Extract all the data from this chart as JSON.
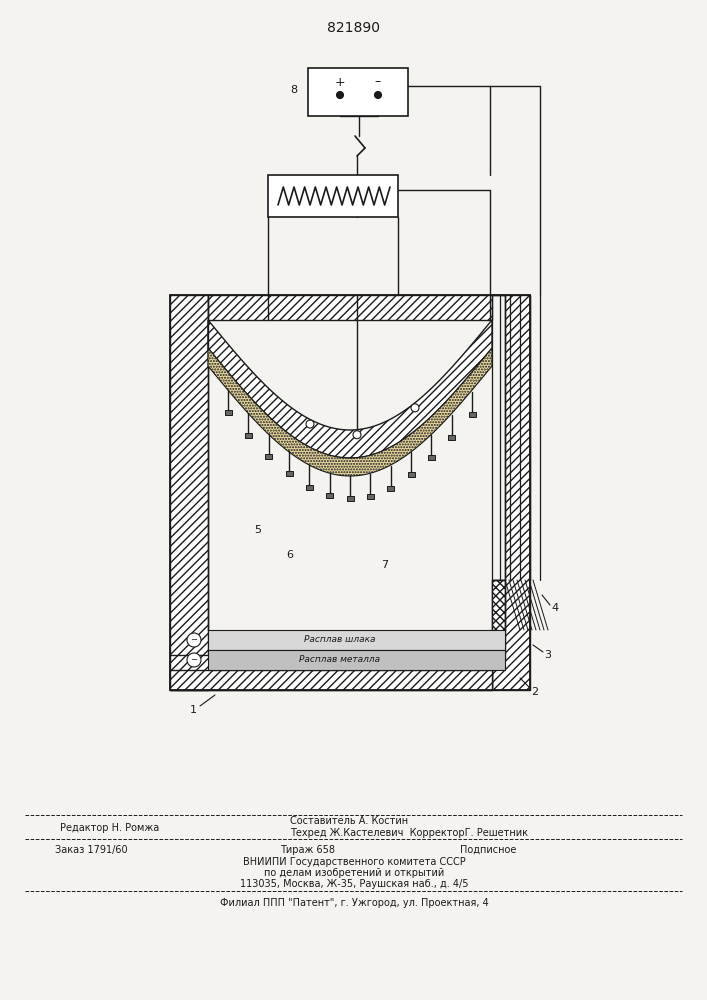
{
  "patent_number": "821890",
  "bg_color": "#f5f3f0",
  "lc": "#1a1a1a",
  "footer": {
    "line1_left": "Редактор Н. Ромжа",
    "line1_right_top": "Составитель А. Костин",
    "line1_right_bot": "Техред Ж.Кастелевич  КорректорГ. Решетник",
    "line2_col1": "Заказ 1791/60",
    "line2_col2": "Тираж 658",
    "line2_col3": "Подписное",
    "line3": "ВНИИПИ Государственного комитета СССР",
    "line4": "по делам изобретений и открытий",
    "line5": "113035, Москва, Ж-35, Раушская наб., д. 4/5",
    "line6": "Филиал ППП \"Патент\", г. Ужгород, ул. Проектная, 4"
  }
}
